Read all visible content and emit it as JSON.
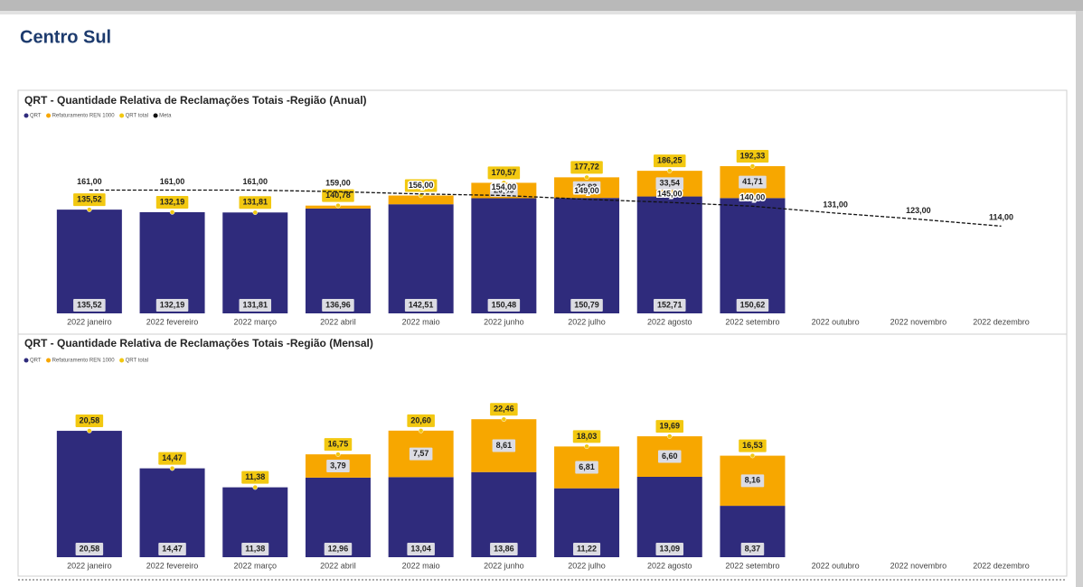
{
  "page_title": "Centro Sul",
  "chart_data": [
    {
      "type": "bar",
      "stacked": true,
      "title": "QRT - Quantidade Relativa de Reclamações Totais -Região (Anual)",
      "categories": [
        "2022 janeiro",
        "2022 fevereiro",
        "2022 março",
        "2022 abril",
        "2022 maio",
        "2022 junho",
        "2022 julho",
        "2022 agosto",
        "2022 setembro",
        "2022 outubro",
        "2022 novembro",
        "2022 dezembro"
      ],
      "ylim": [
        0,
        210
      ],
      "series": [
        {
          "name": "QRT",
          "type": "bar",
          "color": "#2f2b7c",
          "values": [
            135.52,
            132.19,
            131.81,
            136.96,
            142.51,
            150.48,
            150.79,
            152.71,
            150.62,
            null,
            null,
            null
          ],
          "value_labels": [
            "135,52",
            "132,19",
            "131,81",
            "136,96",
            "142,51",
            "150,48",
            "150,79",
            "152,71",
            "150,62",
            null,
            null,
            null
          ]
        },
        {
          "name": "Refaturamento REN 1000",
          "type": "bar",
          "color": "#f7a700",
          "values": [
            0,
            0,
            0,
            3.82,
            11.44,
            20.09,
            26.93,
            33.54,
            41.71,
            null,
            null,
            null
          ],
          "value_labels": [
            null,
            null,
            null,
            null,
            null,
            "20,09",
            "26,93",
            "33,54",
            "41,71",
            null,
            null,
            null
          ]
        },
        {
          "name": "QRT total",
          "type": "scatter",
          "color": "#f2c811",
          "values": [
            135.52,
            132.19,
            131.81,
            140.78,
            153.95,
            170.57,
            177.72,
            186.25,
            192.33,
            null,
            null,
            null
          ],
          "value_labels": [
            "135,52",
            "132,19",
            "131,81",
            "140,78",
            "153,95",
            "170,57",
            "177,72",
            "186,25",
            "192,33",
            null,
            null,
            null
          ]
        },
        {
          "name": "Meta",
          "type": "line",
          "color": "#111111",
          "dashed": true,
          "values": [
            161,
            161,
            161,
            159,
            156,
            154,
            149,
            145,
            140,
            131,
            123,
            114
          ],
          "value_labels": [
            "161,00",
            "161,00",
            "161,00",
            "159,00",
            "156,00",
            "154,00",
            "149,00",
            "145,00",
            "140,00",
            "131,00",
            "123,00",
            "114,00"
          ]
        }
      ]
    },
    {
      "type": "bar",
      "stacked": true,
      "title": "QRT - Quantidade Relativa de Reclamações Totais -Região (Mensal)",
      "categories": [
        "2022 janeiro",
        "2022 fevereiro",
        "2022 março",
        "2022 abril",
        "2022 maio",
        "2022 junho",
        "2022 julho",
        "2022 agosto",
        "2022 setembro",
        "2022 outubro",
        "2022 novembro",
        "2022 dezembro"
      ],
      "ylim": [
        0,
        25
      ],
      "series": [
        {
          "name": "QRT",
          "type": "bar",
          "color": "#2f2b7c",
          "values": [
            20.58,
            14.47,
            11.38,
            12.96,
            13.04,
            13.86,
            11.22,
            13.09,
            8.37,
            null,
            null,
            null
          ],
          "value_labels": [
            "20,58",
            "14,47",
            "11,38",
            "12,96",
            "13,04",
            "13,86",
            "11,22",
            "13,09",
            "8,37",
            null,
            null,
            null
          ]
        },
        {
          "name": "Refaturamento REN 1000",
          "type": "bar",
          "color": "#f7a700",
          "values": [
            0,
            0,
            0,
            3.79,
            7.57,
            8.61,
            6.81,
            6.6,
            8.16,
            null,
            null,
            null
          ],
          "value_labels": [
            null,
            null,
            null,
            "3,79",
            "7,57",
            "8,61",
            "6,81",
            "6,60",
            "8,16",
            null,
            null,
            null
          ]
        },
        {
          "name": "QRT total",
          "type": "scatter",
          "color": "#f2c811",
          "values": [
            20.58,
            14.47,
            11.38,
            16.75,
            20.6,
            22.46,
            18.03,
            19.69,
            16.53,
            null,
            null,
            null
          ],
          "value_labels": [
            "20,58",
            "14,47",
            "11,38",
            "16,75",
            "20,60",
            "22,46",
            "18,03",
            "19,69",
            "16,53",
            null,
            null,
            null
          ]
        }
      ]
    }
  ]
}
